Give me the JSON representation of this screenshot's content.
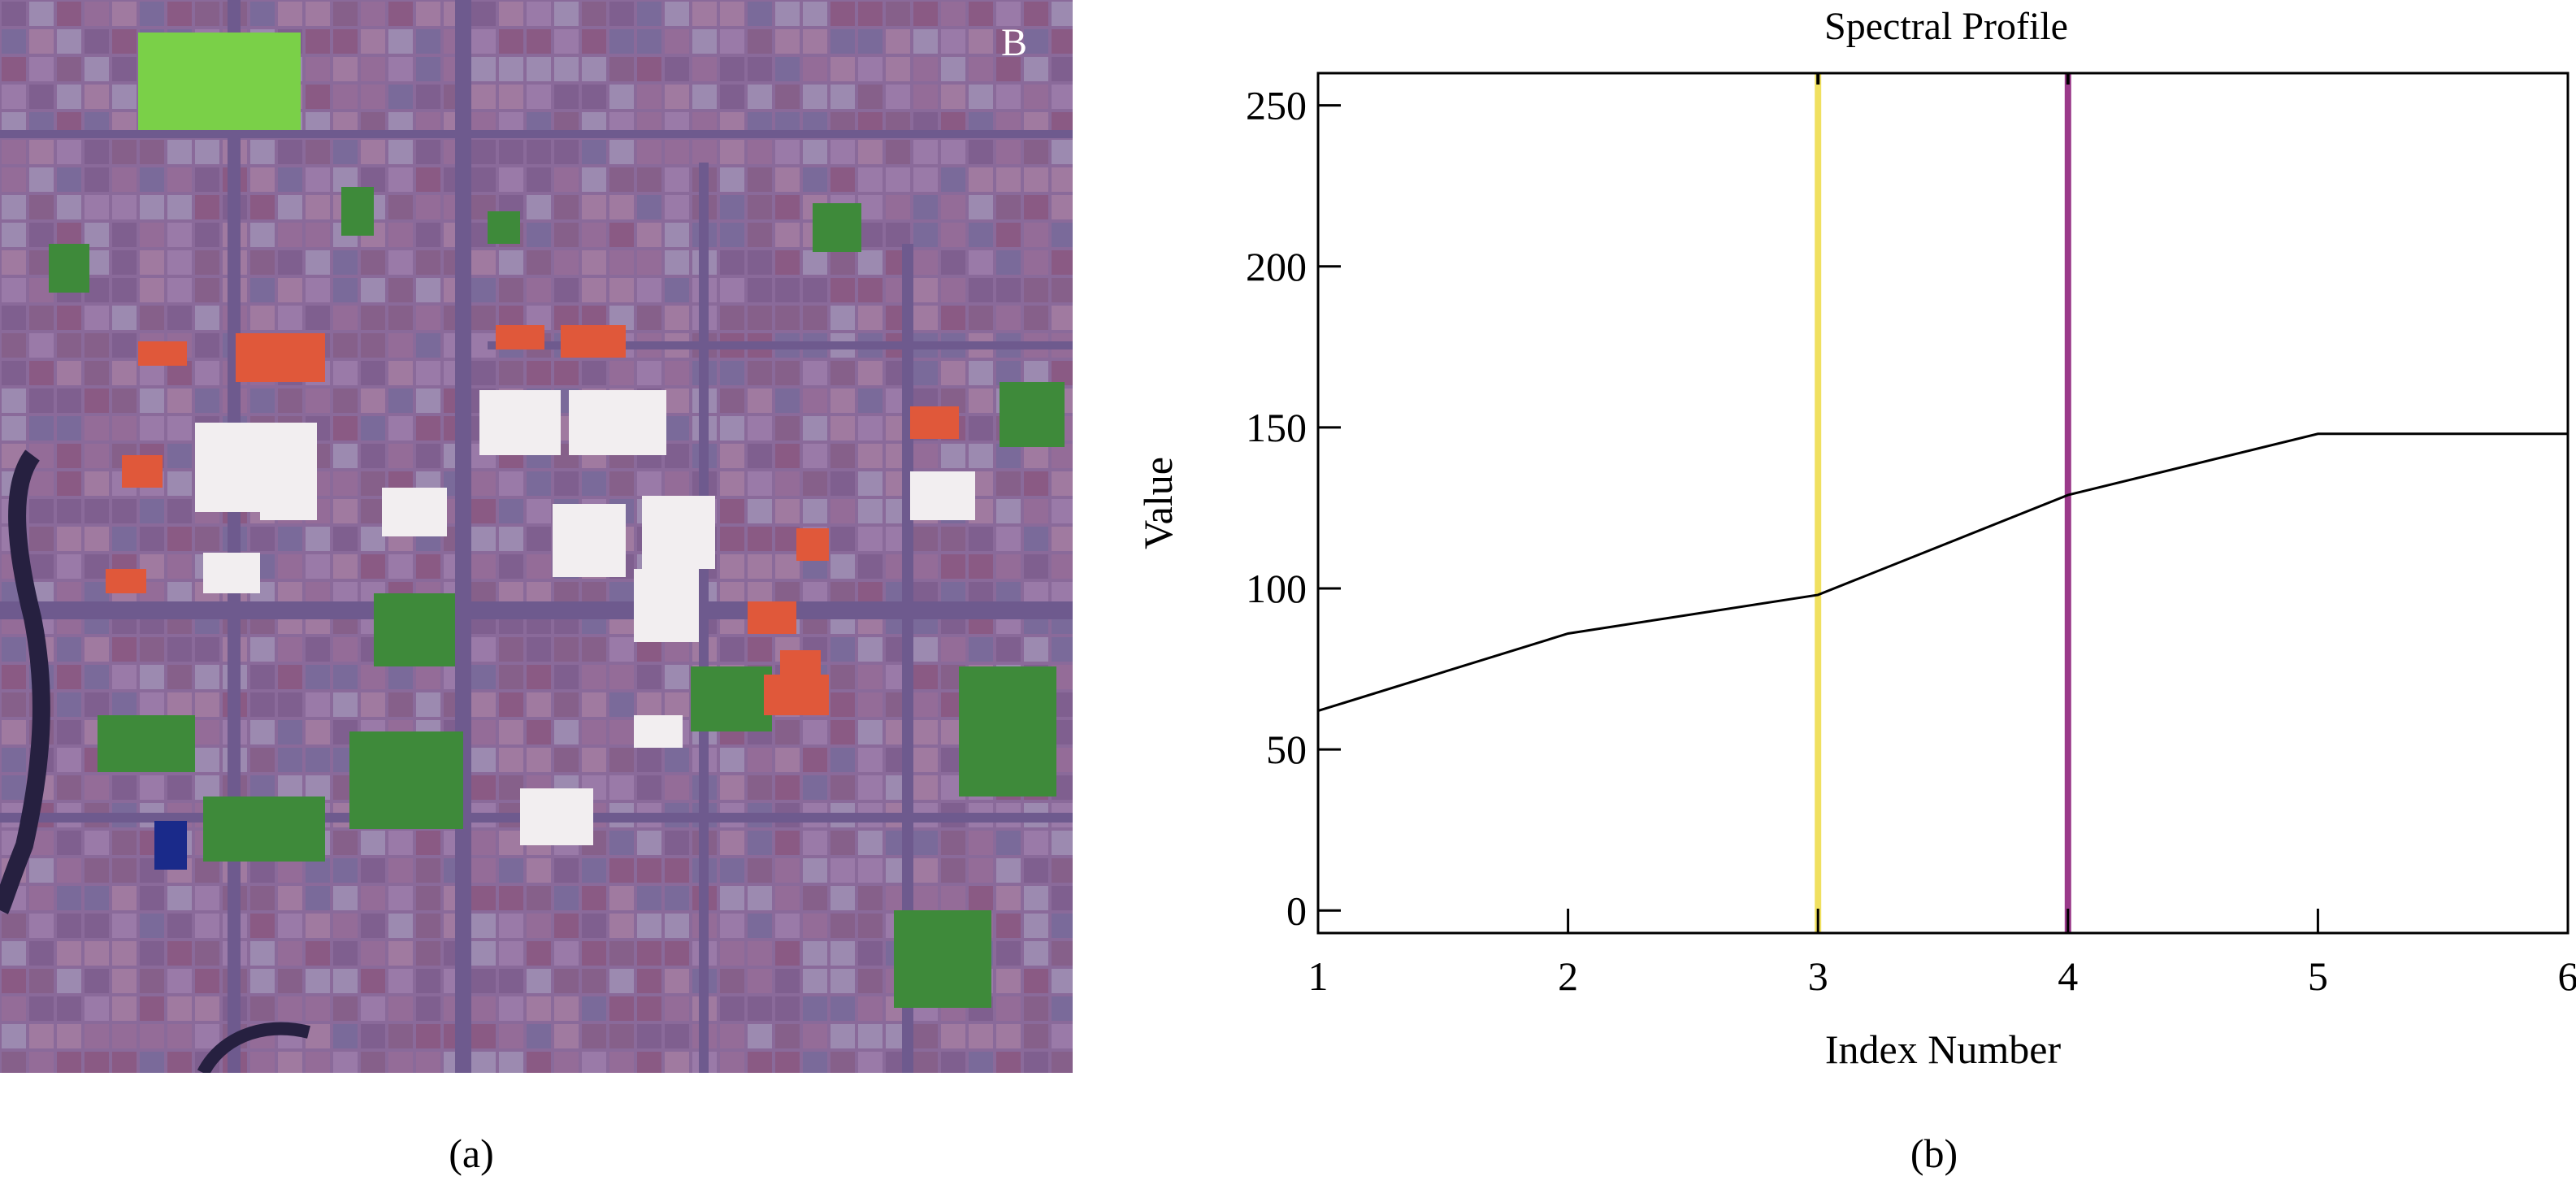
{
  "panel_a": {
    "corner_label": "B",
    "caption": "(a)",
    "palette": {
      "background": "#8a6a9a",
      "road": "#6e5a8e",
      "vegetation": "#3e8a3a",
      "bright_veg": "#7ad048",
      "roof_red": "#e0583a",
      "roof_white": "#f2eef0",
      "water": "#262040",
      "pool": "#1a2a8a"
    }
  },
  "panel_b": {
    "caption": "(b)"
  },
  "chart_data": {
    "type": "line",
    "title": "Spectral Profile",
    "xlabel": "Index Number",
    "ylabel": "Value",
    "xlim": [
      1,
      6
    ],
    "ylim": [
      -7,
      260
    ],
    "x_ticks": [
      "1",
      "2",
      "3",
      "4",
      "5",
      "6"
    ],
    "y_ticks": [
      "0",
      "50",
      "100",
      "150",
      "200",
      "250"
    ],
    "y_tick_values": [
      0,
      50,
      100,
      150,
      200,
      250
    ],
    "x_tick_values": [
      1,
      2,
      3,
      4,
      5,
      6
    ],
    "series": [
      {
        "x": [
          1,
          2,
          3,
          4,
          5,
          6
        ],
        "values": [
          62,
          86,
          98,
          129,
          148,
          148
        ],
        "color": "#000000"
      }
    ],
    "markers": [
      {
        "x": 3,
        "color": "#f0e060"
      },
      {
        "x": 4,
        "color": "#9a3a8a"
      }
    ],
    "grid": false,
    "legend": "none"
  }
}
